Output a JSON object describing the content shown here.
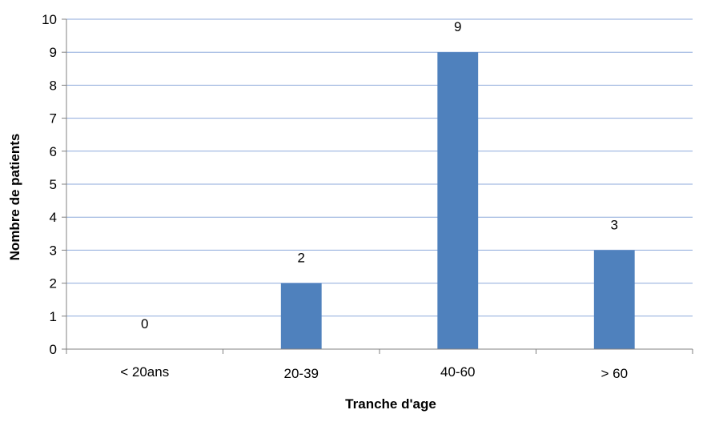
{
  "chart_data": {
    "type": "bar",
    "title": "",
    "categories": [
      "< 20ans",
      "20-39",
      "40-60",
      "> 60"
    ],
    "series": [
      {
        "values": [
          0,
          2,
          9,
          3
        ],
        "color": "#4F81BD"
      }
    ],
    "data_labels": [
      "0",
      "2",
      "9",
      "3"
    ],
    "xlabel": "Tranche d'age",
    "ylabel": "Nombre de patients",
    "ylim": [
      0,
      10
    ],
    "yticks": [
      0,
      1,
      2,
      3,
      4,
      5,
      6,
      7,
      8,
      9,
      10
    ],
    "grid": true,
    "grid_color": "#8EAADB",
    "axis_color": "#808080",
    "legend": "none"
  }
}
